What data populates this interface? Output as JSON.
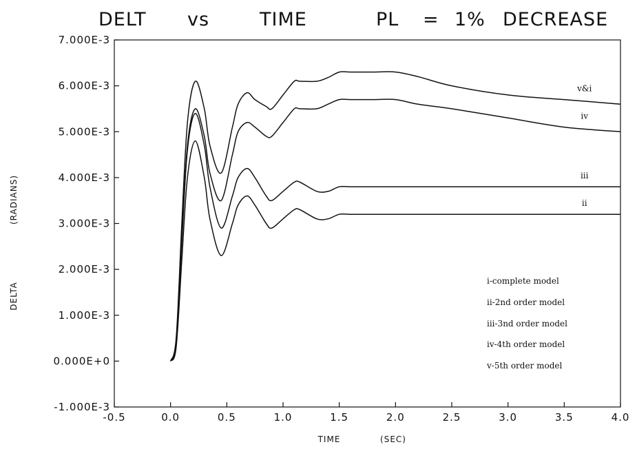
{
  "chart_data": {
    "type": "line",
    "title_parts": [
      "DELT",
      "vs",
      "TIME",
      "PL",
      "=",
      "1%",
      "DECREASE"
    ],
    "xlabel_parts": [
      "TIME",
      "(SEC)"
    ],
    "ylabel_parts": [
      "DELTA",
      "(RADIANS)"
    ],
    "xlim": [
      -0.5,
      4.0
    ],
    "ylim": [
      -0.001,
      0.007
    ],
    "x_ticks": [
      -0.5,
      0.0,
      0.5,
      1.0,
      1.5,
      2.0,
      2.5,
      3.0,
      3.5,
      4.0
    ],
    "x_tick_labels": [
      "-0.5",
      "0.0",
      "0.5",
      "1.0",
      "1.5",
      "2.0",
      "2.5",
      "3.0",
      "3.5",
      "4.0"
    ],
    "y_ticks": [
      -0.001,
      0.0,
      0.001,
      0.002,
      0.003,
      0.004,
      0.005,
      0.006,
      0.007
    ],
    "y_tick_labels": [
      "-1.000E-3",
      "0.000E+0",
      "1.000E-3",
      "2.000E-3",
      "3.000E-3",
      "4.000E-3",
      "5.000E-3",
      "6.000E-3",
      "7.000E-3"
    ],
    "grid": false,
    "series": [
      {
        "name": "v&i",
        "x": [
          0.0,
          0.05,
          0.1,
          0.15,
          0.22,
          0.3,
          0.35,
          0.45,
          0.55,
          0.6,
          0.68,
          0.75,
          0.85,
          0.9,
          1.0,
          1.1,
          1.15,
          1.3,
          1.4,
          1.5,
          1.6,
          1.8,
          2.0,
          2.2,
          2.5,
          3.0,
          3.5,
          4.0
        ],
        "y": [
          0.0,
          0.0005,
          0.003,
          0.0052,
          0.0061,
          0.0055,
          0.0047,
          0.0041,
          0.0051,
          0.0056,
          0.00585,
          0.0057,
          0.00555,
          0.0055,
          0.0058,
          0.0061,
          0.0061,
          0.0061,
          0.00618,
          0.0063,
          0.0063,
          0.0063,
          0.0063,
          0.0062,
          0.006,
          0.0058,
          0.0057,
          0.0056
        ]
      },
      {
        "name": "iv",
        "x": [
          0.0,
          0.05,
          0.1,
          0.15,
          0.22,
          0.3,
          0.35,
          0.45,
          0.55,
          0.6,
          0.68,
          0.75,
          0.85,
          0.9,
          1.0,
          1.1,
          1.15,
          1.3,
          1.4,
          1.5,
          1.6,
          1.8,
          2.0,
          2.2,
          2.5,
          3.0,
          3.5,
          4.0
        ],
        "y": [
          0.0,
          0.0004,
          0.0027,
          0.0047,
          0.0055,
          0.0049,
          0.0041,
          0.0035,
          0.0045,
          0.005,
          0.0052,
          0.0051,
          0.0049,
          0.0049,
          0.0052,
          0.0055,
          0.0055,
          0.0055,
          0.0056,
          0.0057,
          0.0057,
          0.0057,
          0.0057,
          0.0056,
          0.0055,
          0.0053,
          0.0051,
          0.005
        ]
      },
      {
        "name": "iii",
        "x": [
          0.0,
          0.05,
          0.1,
          0.15,
          0.22,
          0.3,
          0.35,
          0.45,
          0.55,
          0.6,
          0.68,
          0.75,
          0.85,
          0.9,
          1.0,
          1.1,
          1.15,
          1.3,
          1.4,
          1.5,
          1.6,
          1.8,
          2.0,
          2.5,
          3.0,
          3.5,
          4.0
        ],
        "y": [
          0.0,
          0.0004,
          0.0026,
          0.0046,
          0.0054,
          0.0047,
          0.0038,
          0.0029,
          0.0036,
          0.004,
          0.0042,
          0.004,
          0.0036,
          0.0035,
          0.0037,
          0.0039,
          0.0039,
          0.0037,
          0.0037,
          0.0038,
          0.0038,
          0.0038,
          0.0038,
          0.0038,
          0.0038,
          0.0038,
          0.0038
        ]
      },
      {
        "name": "ii",
        "x": [
          0.0,
          0.05,
          0.1,
          0.15,
          0.22,
          0.3,
          0.35,
          0.45,
          0.55,
          0.6,
          0.68,
          0.75,
          0.85,
          0.9,
          1.0,
          1.1,
          1.15,
          1.3,
          1.4,
          1.5,
          1.6,
          1.8,
          2.0,
          2.5,
          3.0,
          3.5,
          4.0
        ],
        "y": [
          0.0,
          0.0003,
          0.0022,
          0.004,
          0.0048,
          0.004,
          0.0031,
          0.0023,
          0.003,
          0.0034,
          0.0036,
          0.0034,
          0.003,
          0.0029,
          0.0031,
          0.0033,
          0.0033,
          0.0031,
          0.0031,
          0.0032,
          0.0032,
          0.0032,
          0.0032,
          0.0032,
          0.0032,
          0.0032,
          0.0032
        ]
      }
    ],
    "legend_lines": [
      "i-complete model",
      "ii-2nd order model",
      "iii-3nd order model",
      "iv-4th order model",
      "v-5th order model"
    ],
    "legend_position": "lower-right"
  }
}
